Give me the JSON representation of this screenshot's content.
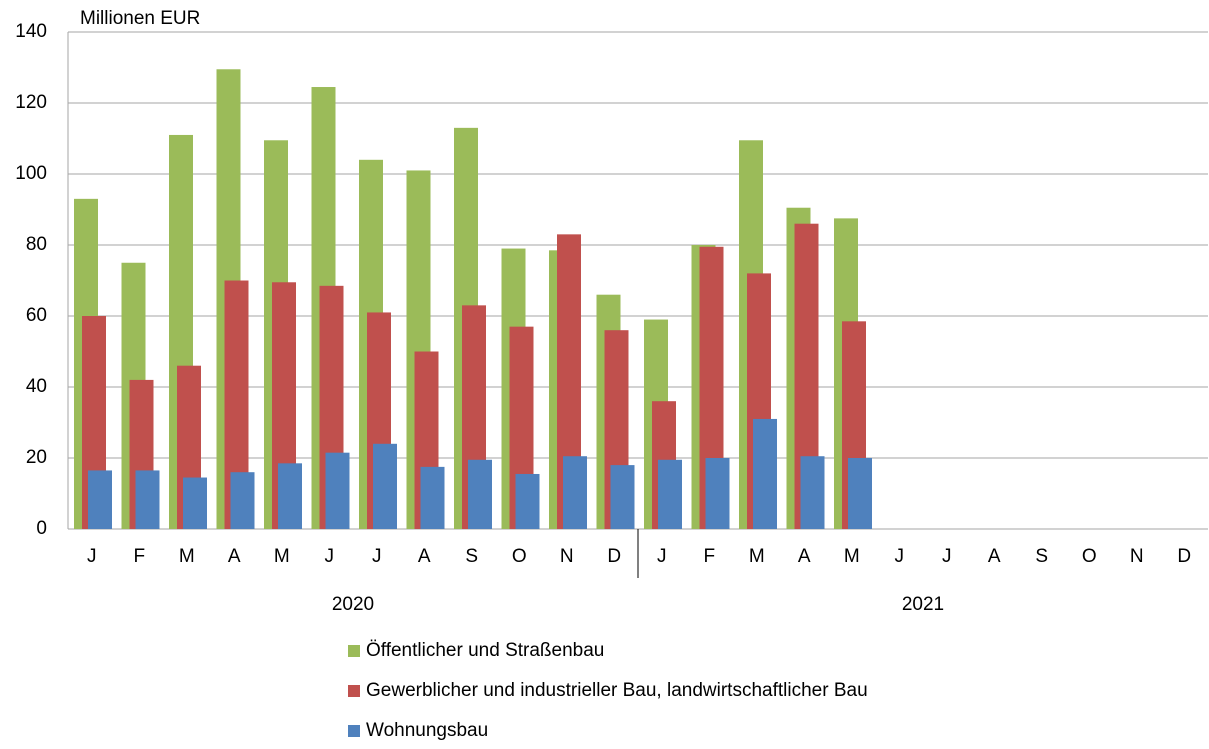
{
  "chart_data": {
    "type": "bar",
    "y_label": "Millionen EUR",
    "categories": [
      "J",
      "F",
      "M",
      "A",
      "M",
      "J",
      "J",
      "A",
      "S",
      "O",
      "N",
      "D",
      "J",
      "F",
      "M",
      "A",
      "M",
      "J",
      "J",
      "A",
      "S",
      "O",
      "N",
      "D"
    ],
    "groups": [
      "2020",
      "2021"
    ],
    "series": [
      {
        "name": "Öffentlicher und Straßenbau",
        "color": "#9bbb59",
        "values": [
          93,
          75,
          111,
          129.5,
          109.5,
          124.5,
          104,
          101,
          113,
          79,
          78.5,
          66,
          59,
          80,
          109.5,
          90.5,
          87.5,
          null,
          null,
          null,
          null,
          null,
          null,
          null
        ]
      },
      {
        "name": "Gewerblicher und industrieller Bau, landwirtschaftlicher Bau",
        "color": "#c0504d",
        "values": [
          60,
          42,
          46,
          70,
          69.5,
          68.5,
          61,
          50,
          63,
          57,
          83,
          56,
          36,
          79.5,
          72,
          86,
          58.5,
          null,
          null,
          null,
          null,
          null,
          null,
          null
        ]
      },
      {
        "name": "Wohnungsbau",
        "color": "#4f81bd",
        "values": [
          16.5,
          16.5,
          14.5,
          16,
          18.5,
          21.5,
          24,
          17.5,
          19.5,
          15.5,
          20.5,
          18,
          19.5,
          20,
          31,
          20.5,
          20,
          null,
          null,
          null,
          null,
          null,
          null,
          null
        ]
      }
    ],
    "ylim": [
      0,
      140
    ],
    "yticks": [
      0,
      20,
      40,
      60,
      80,
      100,
      120,
      140
    ],
    "grid": true
  }
}
